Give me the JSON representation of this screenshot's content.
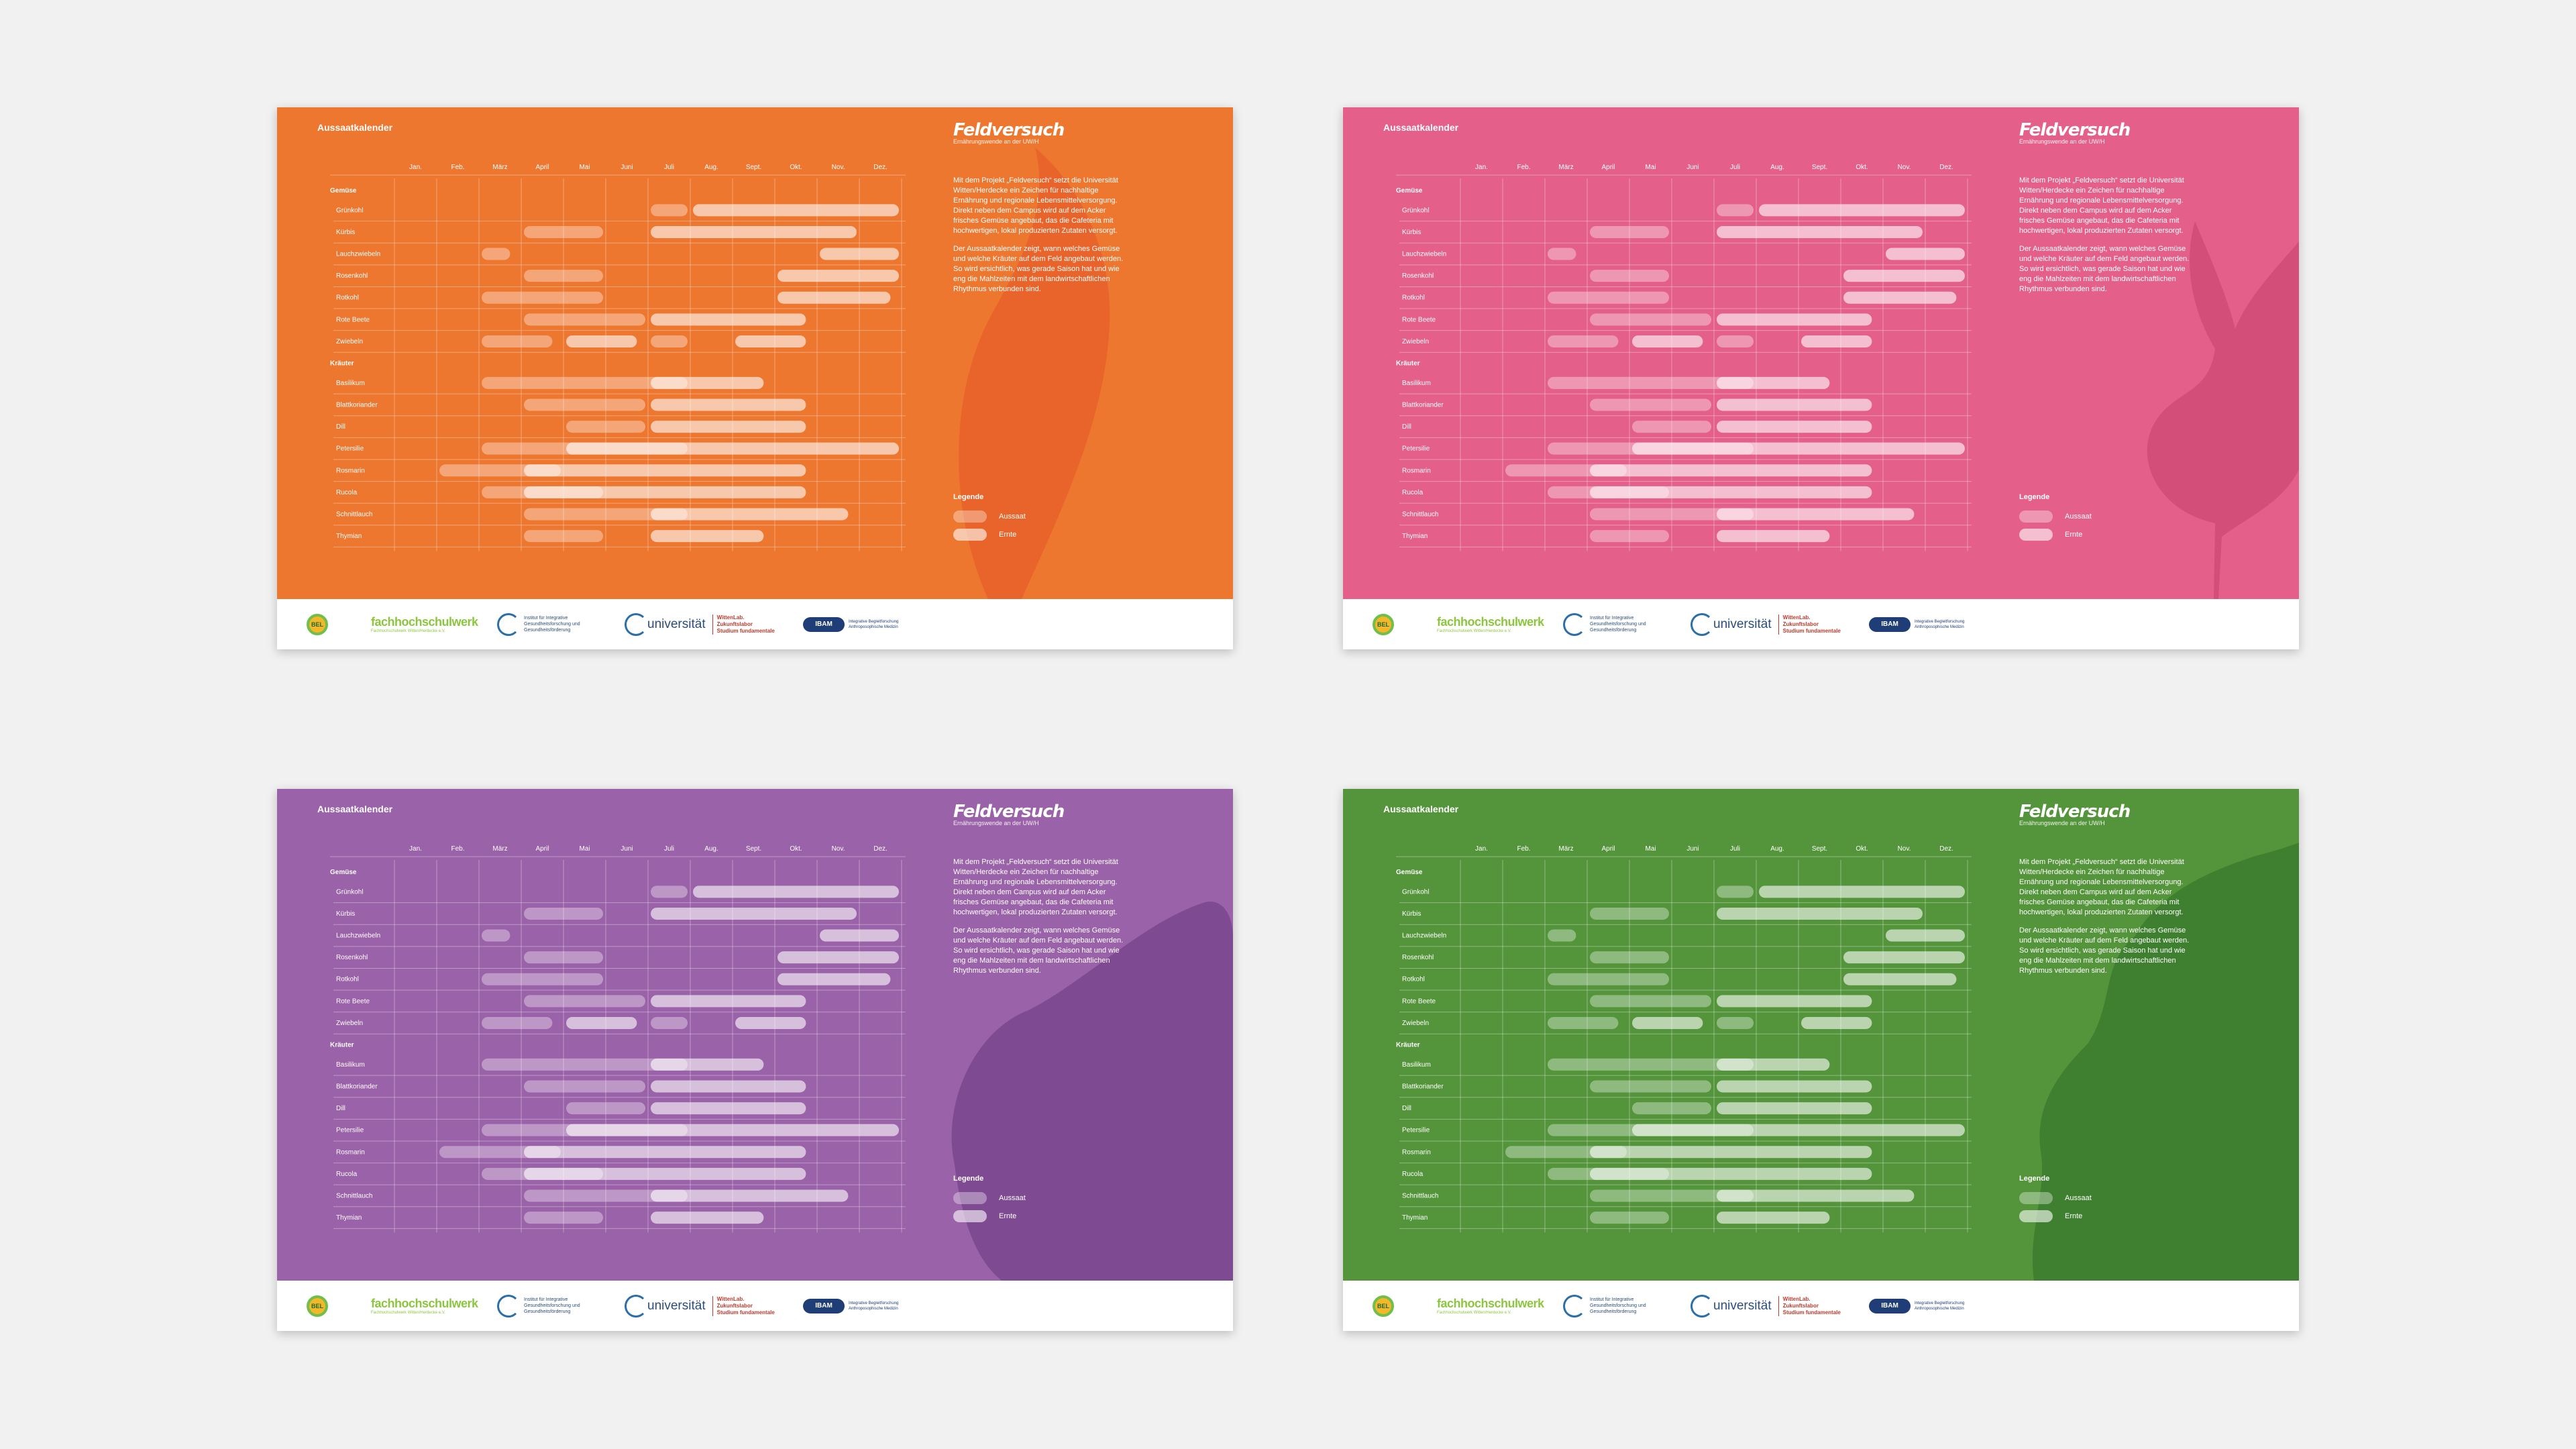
{
  "title": "Aussaatkalender",
  "months": [
    "Jan.",
    "Feb.",
    "März",
    "April",
    "Mai",
    "Juni",
    "Juli",
    "Aug.",
    "Sept.",
    "Okt.",
    "Nov.",
    "Dez."
  ],
  "categories": [
    {
      "name": "Gemüse",
      "rows": [
        {
          "label": "Grünkohl",
          "sow": [
            [
              7,
              8
            ],
            [
              8,
              13
            ]
          ]
        },
        {
          "label": "Kürbis",
          "sow": [
            [
              4,
              6
            ],
            [
              7,
              12
            ]
          ]
        },
        {
          "label": "Lauchzwiebeln",
          "sow": [
            [
              3,
              3.8
            ],
            [
              11,
              13
            ]
          ]
        },
        {
          "label": "Rosenkohl",
          "sow": [
            [
              4,
              6
            ],
            [
              10,
              13
            ]
          ]
        },
        {
          "label": "Rotkohl",
          "sow": [
            [
              3,
              6
            ],
            [
              10,
              12.8
            ]
          ]
        },
        {
          "label": "Rote Beete",
          "sow": [
            [
              4,
              7
            ],
            [
              7,
              10.8
            ]
          ]
        },
        {
          "label": "Zwiebeln",
          "sow": [
            [
              3,
              4.8
            ],
            [
              5,
              6.8
            ],
            [
              7,
              8
            ],
            [
              9,
              10.8
            ]
          ]
        }
      ]
    },
    {
      "name": "Kräuter",
      "rows": [
        {
          "label": "Basilikum",
          "sow": [
            [
              3,
              8
            ],
            [
              7,
              9.8
            ]
          ]
        },
        {
          "label": "Blattkoriander",
          "sow": [
            [
              4,
              7
            ],
            [
              7,
              10.8
            ]
          ]
        },
        {
          "label": "Dill",
          "sow": [
            [
              5,
              7
            ],
            [
              7,
              10.8
            ]
          ]
        },
        {
          "label": "Petersilie",
          "sow": [
            [
              3,
              8
            ],
            [
              5,
              13
            ]
          ]
        },
        {
          "label": "Rosmarin",
          "sow": [
            [
              2,
              5
            ],
            [
              4,
              10.8
            ]
          ]
        },
        {
          "label": "Rucola",
          "sow": [
            [
              3,
              6
            ],
            [
              4,
              10.8
            ]
          ]
        },
        {
          "label": "Schnittlauch",
          "sow": [
            [
              4,
              8
            ],
            [
              7,
              11.8
            ]
          ]
        },
        {
          "label": "Thymian",
          "sow": [
            [
              4,
              6
            ],
            [
              7,
              9.8
            ]
          ]
        }
      ]
    }
  ],
  "brand": {
    "name": "Feldversuch",
    "sub": "Ernährungswende an der UW/H"
  },
  "description": [
    "Mit dem Projekt „Feldversuch“ setzt die Universität Witten/Herdecke ein Zeichen für nachhaltige Ernährung und regionale Lebensmittelversorgung. Direkt neben dem Campus wird auf dem Acker frisches Gemüse angebaut, das die Cafeteria mit hochwertigen, lokal produzierten Zutaten versorgt.",
    "Der Aussaatkalender zeigt, wann welches Gemüse und welche Kräuter auf dem Feld angebaut werden. So wird ersichtlich, was gerade Saison hat und wie eng die Mahlzeiten mit dem landwirtschaftlichen Rhythmus verbunden sind."
  ],
  "legend": {
    "title": "Legende",
    "items": [
      "Aussaat",
      "Ernte"
    ]
  },
  "variants": [
    {
      "bg": "#ee7730",
      "veg": "#e8642a",
      "shape": "leaf"
    },
    {
      "bg": "#e4608a",
      "veg": "#d44e7a",
      "shape": "beet"
    },
    {
      "bg": "#9a62a8",
      "veg": "#7e4a92",
      "shape": "cabbage"
    },
    {
      "bg": "#54953b",
      "veg": "#3f8030",
      "shape": "lettuce"
    }
  ],
  "logos": {
    "l1": "BEL",
    "l2": "fachhochschulwerk",
    "l2sub": "Fachhochschulwerk Witten/Herdecke e.V.",
    "l3": "Institut für Integrative Gesundheitsforschung und Gesundheitsförderung",
    "l4": "universität",
    "l5a": "WittenLab.",
    "l5b": "Zukunftslabor",
    "l5c": "Studium fundamentale",
    "l6": "IBAM",
    "l6t": "Integrative Begleitforschung Anthroposophische Medizin"
  }
}
